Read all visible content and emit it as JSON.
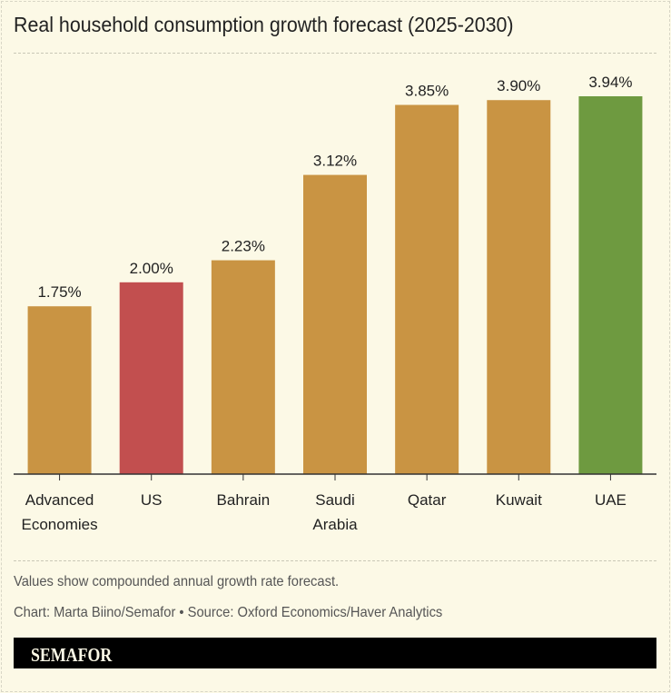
{
  "title": "Real household consumption growth forecast (2025-2030)",
  "chart_data": {
    "type": "bar",
    "title": "Real household consumption growth forecast (2025-2030)",
    "categories": [
      [
        "Advanced",
        "Economies"
      ],
      [
        "US"
      ],
      [
        "Bahrain"
      ],
      [
        "Saudi",
        "Arabia"
      ],
      [
        "Qatar"
      ],
      [
        "Kuwait"
      ],
      [
        "UAE"
      ]
    ],
    "values": [
      1.75,
      2.0,
      2.23,
      3.12,
      3.85,
      3.9,
      3.94
    ],
    "data_labels": [
      "1.75%",
      "2.00%",
      "2.23%",
      "3.12%",
      "3.85%",
      "3.90%",
      "3.94%"
    ],
    "colors": [
      "#c99443",
      "#c24f4f",
      "#c99443",
      "#c99443",
      "#c99443",
      "#c99443",
      "#6e9a40"
    ],
    "ylim": [
      0,
      4.1
    ],
    "grid": false,
    "xlabel": "",
    "ylabel": ""
  },
  "notes": {
    "note": "Values show compounded annual growth rate forecast.",
    "credit": "Chart: Marta Biino/Semafor • Source: Oxford Economics/Haver Analytics"
  },
  "brand": "SEMAFOR"
}
